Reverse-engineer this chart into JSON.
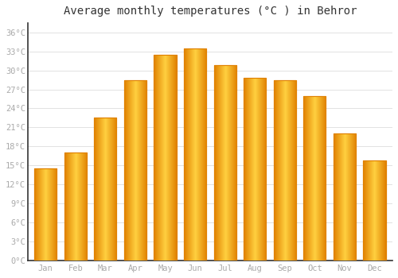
{
  "title": "Average monthly temperatures (°C ) in Behror",
  "months": [
    "Jan",
    "Feb",
    "Mar",
    "Apr",
    "May",
    "Jun",
    "Jul",
    "Aug",
    "Sep",
    "Oct",
    "Nov",
    "Dec"
  ],
  "values": [
    14.5,
    17.0,
    22.5,
    28.5,
    32.5,
    33.5,
    30.8,
    28.8,
    28.5,
    26.0,
    20.0,
    15.8
  ],
  "bar_color_center": "#FFD040",
  "bar_color_edge": "#E08000",
  "background_color": "#FFFFFF",
  "grid_color": "#DDDDDD",
  "ytick_labels": [
    "0°C",
    "3°C",
    "6°C",
    "9°C",
    "12°C",
    "15°C",
    "18°C",
    "21°C",
    "24°C",
    "27°C",
    "30°C",
    "33°C",
    "36°C"
  ],
  "ytick_values": [
    0,
    3,
    6,
    9,
    12,
    15,
    18,
    21,
    24,
    27,
    30,
    33,
    36
  ],
  "ylim": [
    0,
    37.5
  ],
  "title_fontsize": 10,
  "tick_fontsize": 7.5,
  "tick_color": "#AAAAAA",
  "label_color": "#BBBBBB",
  "spine_color": "#333333"
}
